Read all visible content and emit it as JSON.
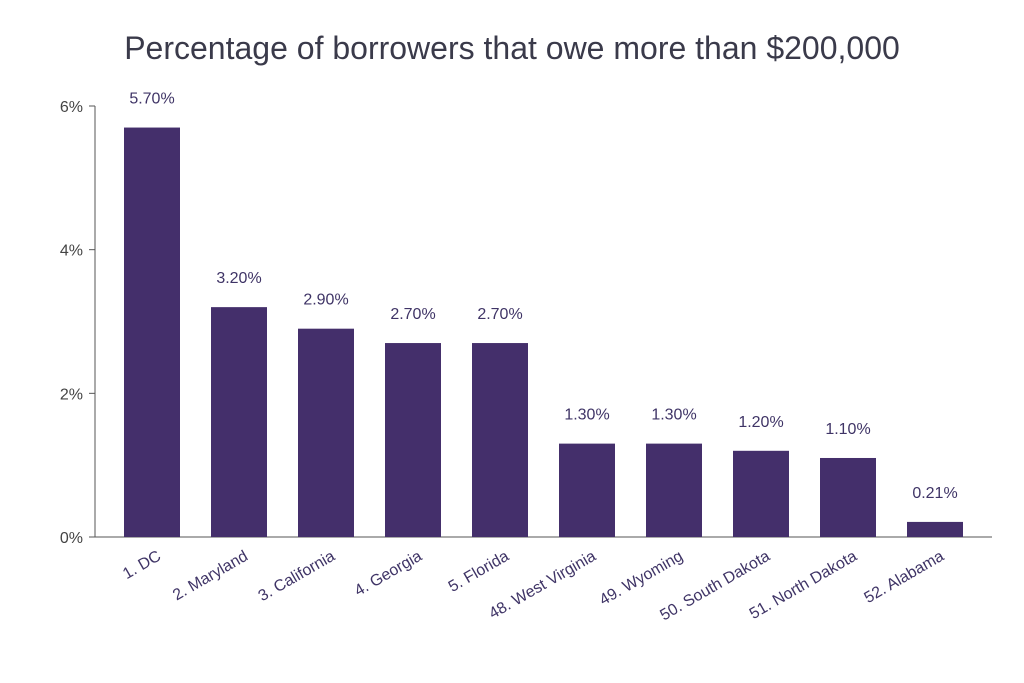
{
  "chart_data": {
    "type": "bar",
    "title": "Percentage of borrowers that owe more than $200,000",
    "xlabel": "",
    "ylabel": "",
    "categories": [
      "1. DC",
      "2. Maryland",
      "3. California",
      "4. Georgia",
      "5. Florida",
      "48. West Virginia",
      "49. Wyoming",
      "50. South Dakota",
      "51. North Dakota",
      "52. Alabama"
    ],
    "values": [
      5.7,
      3.2,
      2.9,
      2.7,
      2.7,
      1.3,
      1.3,
      1.2,
      1.1,
      0.21
    ],
    "value_labels": [
      "5.70%",
      "3.20%",
      "2.90%",
      "2.70%",
      "2.70%",
      "1.30%",
      "1.30%",
      "1.20%",
      "1.10%",
      "0.21%"
    ],
    "ylim": [
      0,
      6
    ],
    "yticks": [
      0,
      2,
      4,
      6
    ],
    "ytick_labels": [
      "0%",
      "2%",
      "4%",
      "6%"
    ],
    "grid": false,
    "bar_color": "#442f6b",
    "label_color": "#3f3466"
  }
}
